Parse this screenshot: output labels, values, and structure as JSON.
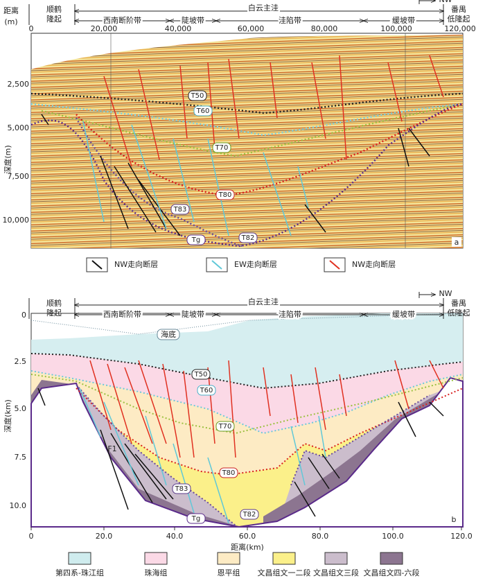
{
  "panel_a": {
    "header": {
      "left_zone": [
        "顺鹤",
        "隆起"
      ],
      "main_zone": "白云主洼",
      "sub_zones": [
        "西南断阶带",
        "陡坡带",
        "洼陷带",
        "缓坡带"
      ],
      "right_zone": [
        "番禺",
        "低隆起"
      ],
      "direction": "NW"
    },
    "x_axis_label": [
      "距离",
      "(m)"
    ],
    "x_ticks": [
      "0",
      "20,000",
      "40,000",
      "60,000",
      "80,000",
      "100,000",
      "120,000"
    ],
    "y_axis_label": "深度(m)",
    "y_ticks": [
      "2,500",
      "5,000",
      "7,500",
      "10,000"
    ],
    "horizons": [
      "T50",
      "T60",
      "T70",
      "T80",
      "T83",
      "T82",
      "Tg"
    ],
    "panel_label": "a"
  },
  "fault_legend": [
    "NW走向断层",
    "EW走向断层",
    "NW走向断层"
  ],
  "panel_b": {
    "header": {
      "left_zone": [
        "顺鹤",
        "隆起"
      ],
      "main_zone": "白云主洼",
      "sub_zones": [
        "西南断阶带",
        "陡坡带",
        "洼陷带",
        "缓坡带"
      ],
      "right_zone": [
        "番禺",
        "低隆起"
      ],
      "direction": "NW"
    },
    "seabed": "海底",
    "fault": "F1",
    "x_axis_label": "距离(km)",
    "x_ticks": [
      "0",
      "20.0",
      "40.0",
      "60.0",
      "80.0",
      "100.0",
      "120.0"
    ],
    "y_axis_label": "深度(km)",
    "y_ticks": [
      "0",
      "2.5",
      "5.0",
      "7.5",
      "10.0"
    ],
    "horizons": [
      "T50",
      "T60",
      "T70",
      "T80",
      "T83",
      "T82",
      "Tg"
    ],
    "panel_label": "b"
  },
  "strata_legend": [
    "第四系-珠江组",
    "珠海组",
    "恩平组",
    "文昌组文一二段",
    "文昌组文三段",
    "文昌组文四-六段"
  ]
}
